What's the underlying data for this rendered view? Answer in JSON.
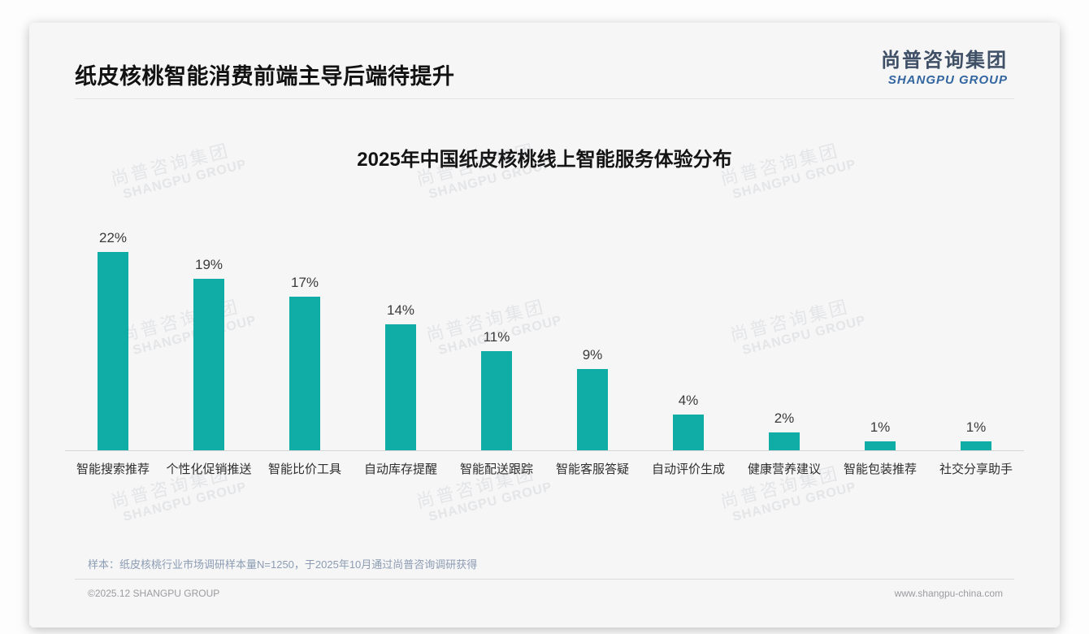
{
  "page": {
    "title": "纸皮核桃智能消费前端主导后端待提升"
  },
  "logo": {
    "cn": "尚普咨询集团",
    "en": "SHANGPU GROUP"
  },
  "watermark": {
    "cn": "尚普咨询集团",
    "en": "SHANGPU GROUP"
  },
  "chart_data": {
    "type": "bar",
    "title": "2025年中国纸皮核桃线上智能服务体验分布",
    "categories": [
      "智能搜索推荐",
      "个性化促销推送",
      "智能比价工具",
      "自动库存提醒",
      "智能配送跟踪",
      "智能客服答疑",
      "自动评价生成",
      "健康营养建议",
      "智能包装推荐",
      "社交分享助手"
    ],
    "values": [
      22,
      19,
      17,
      14,
      11,
      9,
      4,
      2,
      1,
      1
    ],
    "value_suffix": "%",
    "bar_color": "#0fada5",
    "xlabel": "",
    "ylabel": "",
    "ylim": [
      0,
      25
    ],
    "grid": false,
    "legend": "none",
    "value_labels": true
  },
  "footnote": "样本：纸皮核桃行业市场调研样本量N=1250，于2025年10月通过尚普咨询调研获得",
  "footer": {
    "left": "©2025.12 SHANGPU GROUP",
    "right": "www.shangpu-china.com"
  }
}
